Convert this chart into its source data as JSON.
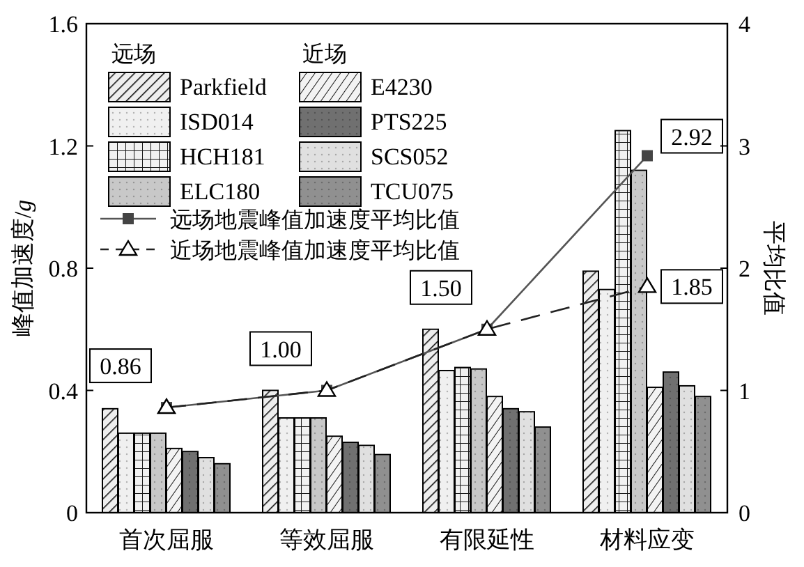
{
  "chart_data": {
    "type": "bar",
    "categories": [
      "首次屈服",
      "等效屈服",
      "有限延性",
      "材料应变"
    ],
    "ylabel": "峰值加速度/g",
    "y2label": "平均比值",
    "ylim": [
      0,
      1.6
    ],
    "yticks": [
      "0",
      {
        "value": 0.4,
        "label": "0.4"
      },
      {
        "value": 0.8,
        "label": "0.8"
      },
      {
        "value": 1.2,
        "label": "1.2"
      },
      {
        "value": 1.6,
        "label": "1.6"
      }
    ],
    "y2lim": [
      0,
      4
    ],
    "y2ticks": [
      0,
      1,
      2,
      3,
      4
    ],
    "legend": "top left",
    "annotations": [
      "远场",
      "近场"
    ],
    "series": [
      {
        "name": "Parkfield",
        "color": "#8c8c8c",
        "values": [
          0.34,
          0.4,
          0.6,
          0.79
        ]
      },
      {
        "name": "ISD014",
        "color": "#f0f0f0",
        "values": [
          0.26,
          0.31,
          0.465,
          0.73
        ]
      },
      {
        "name": "HCH181",
        "color": "#a0a0a0",
        "values": [
          0.26,
          0.31,
          0.475,
          1.25
        ]
      },
      {
        "name": "ELC180",
        "color": "#c8c8c8",
        "values": [
          0.26,
          0.31,
          0.47,
          1.12
        ]
      },
      {
        "name": "E4230",
        "color": "#b0b0b0",
        "values": [
          0.21,
          0.25,
          0.38,
          0.41
        ]
      },
      {
        "name": "PTS225",
        "color": "#707070",
        "values": [
          0.2,
          0.23,
          0.34,
          0.46
        ]
      },
      {
        "name": "SCS052",
        "color": "#e0e0e0",
        "values": [
          0.18,
          0.22,
          0.33,
          0.415
        ]
      },
      {
        "name": "TCU075",
        "color": "#909090",
        "values": [
          0.16,
          0.19,
          0.28,
          0.38
        ]
      },
      {
        "name": "远场地震峰值加速度平均比值",
        "type": "line",
        "axis": "y2",
        "color": "#555555",
        "marker": "square",
        "line_style": "solid",
        "values": [
          0.86,
          1.0,
          1.5,
          2.92
        ],
        "value_labels": [
          "0.86",
          "1.00",
          "1.50",
          "2.92"
        ]
      },
      {
        "name": "近场地震峰值加速度平均比值",
        "type": "line",
        "axis": "y2",
        "color": "#222222",
        "marker": "triangle",
        "line_style": "dashed",
        "values": [
          0.86,
          1.0,
          1.5,
          1.85
        ],
        "value_labels": [
          null,
          null,
          null,
          "1.85"
        ]
      }
    ]
  }
}
